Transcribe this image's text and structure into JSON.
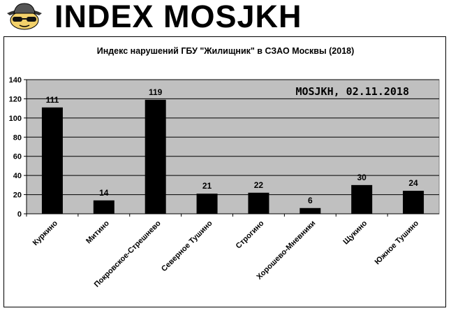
{
  "banner": {
    "title": "INDEX MOSJKH",
    "logo_icon": "spy-detective-icon"
  },
  "chart_data": {
    "type": "bar",
    "title": "Индекс нарушений ГБУ \"Жилищник\" в СЗАО Москвы (2018)",
    "annotation": "MOSJKH, 02.11.2018",
    "categories": [
      "Куркино",
      "Митино",
      "Покровское-Стрешнево",
      "Северное Тушино",
      "Строгино",
      "Хорошево-Мневники",
      "Щукино",
      "Южное Тушино"
    ],
    "values": [
      111,
      14,
      119,
      21,
      22,
      6,
      30,
      24
    ],
    "data_labels": [
      "111",
      "14",
      "119",
      "21",
      "22",
      "6",
      "30",
      "24"
    ],
    "ylim": [
      0,
      140
    ],
    "yticks": [
      "0",
      "20",
      "40",
      "60",
      "80",
      "100",
      "120",
      "140"
    ],
    "grid": true,
    "legend": "none",
    "colors": {
      "bar": "#000000",
      "plot_bg": "#c0c0c0",
      "grid": "#000000"
    }
  }
}
